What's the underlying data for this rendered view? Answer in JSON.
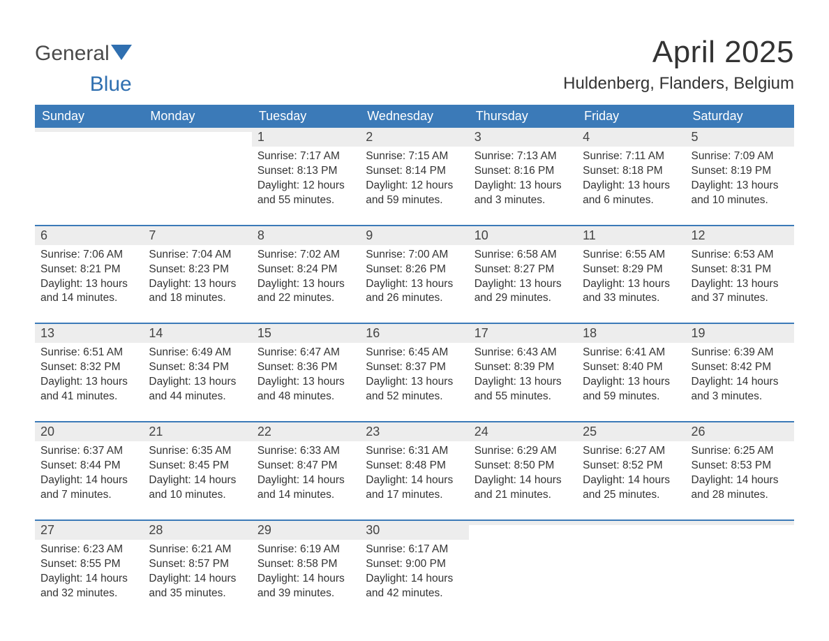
{
  "branding": {
    "logo_general": "General",
    "logo_blue": "Blue",
    "logo_shape_color": "#2f6fb0",
    "logo_text_color_dark": "#4a4a4a"
  },
  "header": {
    "month_title": "April 2025",
    "location": "Huldenberg, Flanders, Belgium"
  },
  "style": {
    "header_bg": "#3b7ab8",
    "header_text": "#ffffff",
    "row_border": "#3b7ab8",
    "daynum_bg": "#ededed",
    "body_text": "#333333",
    "page_bg": "#ffffff",
    "font_family": "Segoe UI, Arial, Helvetica, sans-serif",
    "month_title_fontsize": 44,
    "location_fontsize": 24,
    "weekday_fontsize": 18,
    "daynum_fontsize": 18,
    "body_fontsize": 15.5
  },
  "weekdays": [
    "Sunday",
    "Monday",
    "Tuesday",
    "Wednesday",
    "Thursday",
    "Friday",
    "Saturday"
  ],
  "weeks": [
    [
      {
        "day": "",
        "sunrise": "",
        "sunset": "",
        "daylight1": "",
        "daylight2": ""
      },
      {
        "day": "",
        "sunrise": "",
        "sunset": "",
        "daylight1": "",
        "daylight2": ""
      },
      {
        "day": "1",
        "sunrise": "Sunrise: 7:17 AM",
        "sunset": "Sunset: 8:13 PM",
        "daylight1": "Daylight: 12 hours",
        "daylight2": "and 55 minutes."
      },
      {
        "day": "2",
        "sunrise": "Sunrise: 7:15 AM",
        "sunset": "Sunset: 8:14 PM",
        "daylight1": "Daylight: 12 hours",
        "daylight2": "and 59 minutes."
      },
      {
        "day": "3",
        "sunrise": "Sunrise: 7:13 AM",
        "sunset": "Sunset: 8:16 PM",
        "daylight1": "Daylight: 13 hours",
        "daylight2": "and 3 minutes."
      },
      {
        "day": "4",
        "sunrise": "Sunrise: 7:11 AM",
        "sunset": "Sunset: 8:18 PM",
        "daylight1": "Daylight: 13 hours",
        "daylight2": "and 6 minutes."
      },
      {
        "day": "5",
        "sunrise": "Sunrise: 7:09 AM",
        "sunset": "Sunset: 8:19 PM",
        "daylight1": "Daylight: 13 hours",
        "daylight2": "and 10 minutes."
      }
    ],
    [
      {
        "day": "6",
        "sunrise": "Sunrise: 7:06 AM",
        "sunset": "Sunset: 8:21 PM",
        "daylight1": "Daylight: 13 hours",
        "daylight2": "and 14 minutes."
      },
      {
        "day": "7",
        "sunrise": "Sunrise: 7:04 AM",
        "sunset": "Sunset: 8:23 PM",
        "daylight1": "Daylight: 13 hours",
        "daylight2": "and 18 minutes."
      },
      {
        "day": "8",
        "sunrise": "Sunrise: 7:02 AM",
        "sunset": "Sunset: 8:24 PM",
        "daylight1": "Daylight: 13 hours",
        "daylight2": "and 22 minutes."
      },
      {
        "day": "9",
        "sunrise": "Sunrise: 7:00 AM",
        "sunset": "Sunset: 8:26 PM",
        "daylight1": "Daylight: 13 hours",
        "daylight2": "and 26 minutes."
      },
      {
        "day": "10",
        "sunrise": "Sunrise: 6:58 AM",
        "sunset": "Sunset: 8:27 PM",
        "daylight1": "Daylight: 13 hours",
        "daylight2": "and 29 minutes."
      },
      {
        "day": "11",
        "sunrise": "Sunrise: 6:55 AM",
        "sunset": "Sunset: 8:29 PM",
        "daylight1": "Daylight: 13 hours",
        "daylight2": "and 33 minutes."
      },
      {
        "day": "12",
        "sunrise": "Sunrise: 6:53 AM",
        "sunset": "Sunset: 8:31 PM",
        "daylight1": "Daylight: 13 hours",
        "daylight2": "and 37 minutes."
      }
    ],
    [
      {
        "day": "13",
        "sunrise": "Sunrise: 6:51 AM",
        "sunset": "Sunset: 8:32 PM",
        "daylight1": "Daylight: 13 hours",
        "daylight2": "and 41 minutes."
      },
      {
        "day": "14",
        "sunrise": "Sunrise: 6:49 AM",
        "sunset": "Sunset: 8:34 PM",
        "daylight1": "Daylight: 13 hours",
        "daylight2": "and 44 minutes."
      },
      {
        "day": "15",
        "sunrise": "Sunrise: 6:47 AM",
        "sunset": "Sunset: 8:36 PM",
        "daylight1": "Daylight: 13 hours",
        "daylight2": "and 48 minutes."
      },
      {
        "day": "16",
        "sunrise": "Sunrise: 6:45 AM",
        "sunset": "Sunset: 8:37 PM",
        "daylight1": "Daylight: 13 hours",
        "daylight2": "and 52 minutes."
      },
      {
        "day": "17",
        "sunrise": "Sunrise: 6:43 AM",
        "sunset": "Sunset: 8:39 PM",
        "daylight1": "Daylight: 13 hours",
        "daylight2": "and 55 minutes."
      },
      {
        "day": "18",
        "sunrise": "Sunrise: 6:41 AM",
        "sunset": "Sunset: 8:40 PM",
        "daylight1": "Daylight: 13 hours",
        "daylight2": "and 59 minutes."
      },
      {
        "day": "19",
        "sunrise": "Sunrise: 6:39 AM",
        "sunset": "Sunset: 8:42 PM",
        "daylight1": "Daylight: 14 hours",
        "daylight2": "and 3 minutes."
      }
    ],
    [
      {
        "day": "20",
        "sunrise": "Sunrise: 6:37 AM",
        "sunset": "Sunset: 8:44 PM",
        "daylight1": "Daylight: 14 hours",
        "daylight2": "and 7 minutes."
      },
      {
        "day": "21",
        "sunrise": "Sunrise: 6:35 AM",
        "sunset": "Sunset: 8:45 PM",
        "daylight1": "Daylight: 14 hours",
        "daylight2": "and 10 minutes."
      },
      {
        "day": "22",
        "sunrise": "Sunrise: 6:33 AM",
        "sunset": "Sunset: 8:47 PM",
        "daylight1": "Daylight: 14 hours",
        "daylight2": "and 14 minutes."
      },
      {
        "day": "23",
        "sunrise": "Sunrise: 6:31 AM",
        "sunset": "Sunset: 8:48 PM",
        "daylight1": "Daylight: 14 hours",
        "daylight2": "and 17 minutes."
      },
      {
        "day": "24",
        "sunrise": "Sunrise: 6:29 AM",
        "sunset": "Sunset: 8:50 PM",
        "daylight1": "Daylight: 14 hours",
        "daylight2": "and 21 minutes."
      },
      {
        "day": "25",
        "sunrise": "Sunrise: 6:27 AM",
        "sunset": "Sunset: 8:52 PM",
        "daylight1": "Daylight: 14 hours",
        "daylight2": "and 25 minutes."
      },
      {
        "day": "26",
        "sunrise": "Sunrise: 6:25 AM",
        "sunset": "Sunset: 8:53 PM",
        "daylight1": "Daylight: 14 hours",
        "daylight2": "and 28 minutes."
      }
    ],
    [
      {
        "day": "27",
        "sunrise": "Sunrise: 6:23 AM",
        "sunset": "Sunset: 8:55 PM",
        "daylight1": "Daylight: 14 hours",
        "daylight2": "and 32 minutes."
      },
      {
        "day": "28",
        "sunrise": "Sunrise: 6:21 AM",
        "sunset": "Sunset: 8:57 PM",
        "daylight1": "Daylight: 14 hours",
        "daylight2": "and 35 minutes."
      },
      {
        "day": "29",
        "sunrise": "Sunrise: 6:19 AM",
        "sunset": "Sunset: 8:58 PM",
        "daylight1": "Daylight: 14 hours",
        "daylight2": "and 39 minutes."
      },
      {
        "day": "30",
        "sunrise": "Sunrise: 6:17 AM",
        "sunset": "Sunset: 9:00 PM",
        "daylight1": "Daylight: 14 hours",
        "daylight2": "and 42 minutes."
      },
      {
        "day": "",
        "sunrise": "",
        "sunset": "",
        "daylight1": "",
        "daylight2": ""
      },
      {
        "day": "",
        "sunrise": "",
        "sunset": "",
        "daylight1": "",
        "daylight2": ""
      },
      {
        "day": "",
        "sunrise": "",
        "sunset": "",
        "daylight1": "",
        "daylight2": ""
      }
    ]
  ]
}
